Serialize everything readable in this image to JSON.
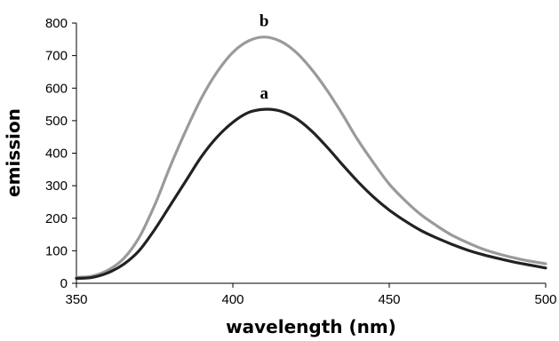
{
  "chart_data": {
    "type": "line",
    "title": "",
    "xlabel": "wavelength (nm)",
    "ylabel": "emission",
    "xlim": [
      350,
      500
    ],
    "ylim": [
      0,
      800
    ],
    "x_ticks": [
      350,
      400,
      450,
      500
    ],
    "y_ticks": [
      0,
      100,
      200,
      300,
      400,
      500,
      600,
      700,
      800
    ],
    "grid": false,
    "series": [
      {
        "label": "b",
        "color": "#9a9a9a",
        "points": [
          [
            350,
            18
          ],
          [
            355,
            22
          ],
          [
            360,
            40
          ],
          [
            365,
            75
          ],
          [
            370,
            140
          ],
          [
            375,
            240
          ],
          [
            380,
            360
          ],
          [
            385,
            470
          ],
          [
            390,
            570
          ],
          [
            395,
            650
          ],
          [
            400,
            710
          ],
          [
            405,
            745
          ],
          [
            410,
            757
          ],
          [
            415,
            745
          ],
          [
            420,
            712
          ],
          [
            425,
            660
          ],
          [
            430,
            595
          ],
          [
            435,
            520
          ],
          [
            440,
            440
          ],
          [
            445,
            370
          ],
          [
            450,
            305
          ],
          [
            455,
            255
          ],
          [
            460,
            212
          ],
          [
            465,
            178
          ],
          [
            470,
            148
          ],
          [
            475,
            125
          ],
          [
            480,
            105
          ],
          [
            485,
            90
          ],
          [
            490,
            78
          ],
          [
            495,
            68
          ],
          [
            500,
            60
          ]
        ]
      },
      {
        "label": "a",
        "color": "#222222",
        "points": [
          [
            350,
            15
          ],
          [
            355,
            18
          ],
          [
            360,
            32
          ],
          [
            365,
            58
          ],
          [
            370,
            100
          ],
          [
            375,
            165
          ],
          [
            380,
            240
          ],
          [
            385,
            315
          ],
          [
            390,
            390
          ],
          [
            395,
            450
          ],
          [
            400,
            495
          ],
          [
            405,
            525
          ],
          [
            410,
            535
          ],
          [
            415,
            530
          ],
          [
            420,
            508
          ],
          [
            425,
            470
          ],
          [
            430,
            420
          ],
          [
            435,
            365
          ],
          [
            440,
            312
          ],
          [
            445,
            265
          ],
          [
            450,
            225
          ],
          [
            455,
            192
          ],
          [
            460,
            163
          ],
          [
            465,
            140
          ],
          [
            470,
            120
          ],
          [
            475,
            102
          ],
          [
            480,
            88
          ],
          [
            485,
            76
          ],
          [
            490,
            65
          ],
          [
            495,
            56
          ],
          [
            500,
            47
          ]
        ]
      }
    ]
  }
}
